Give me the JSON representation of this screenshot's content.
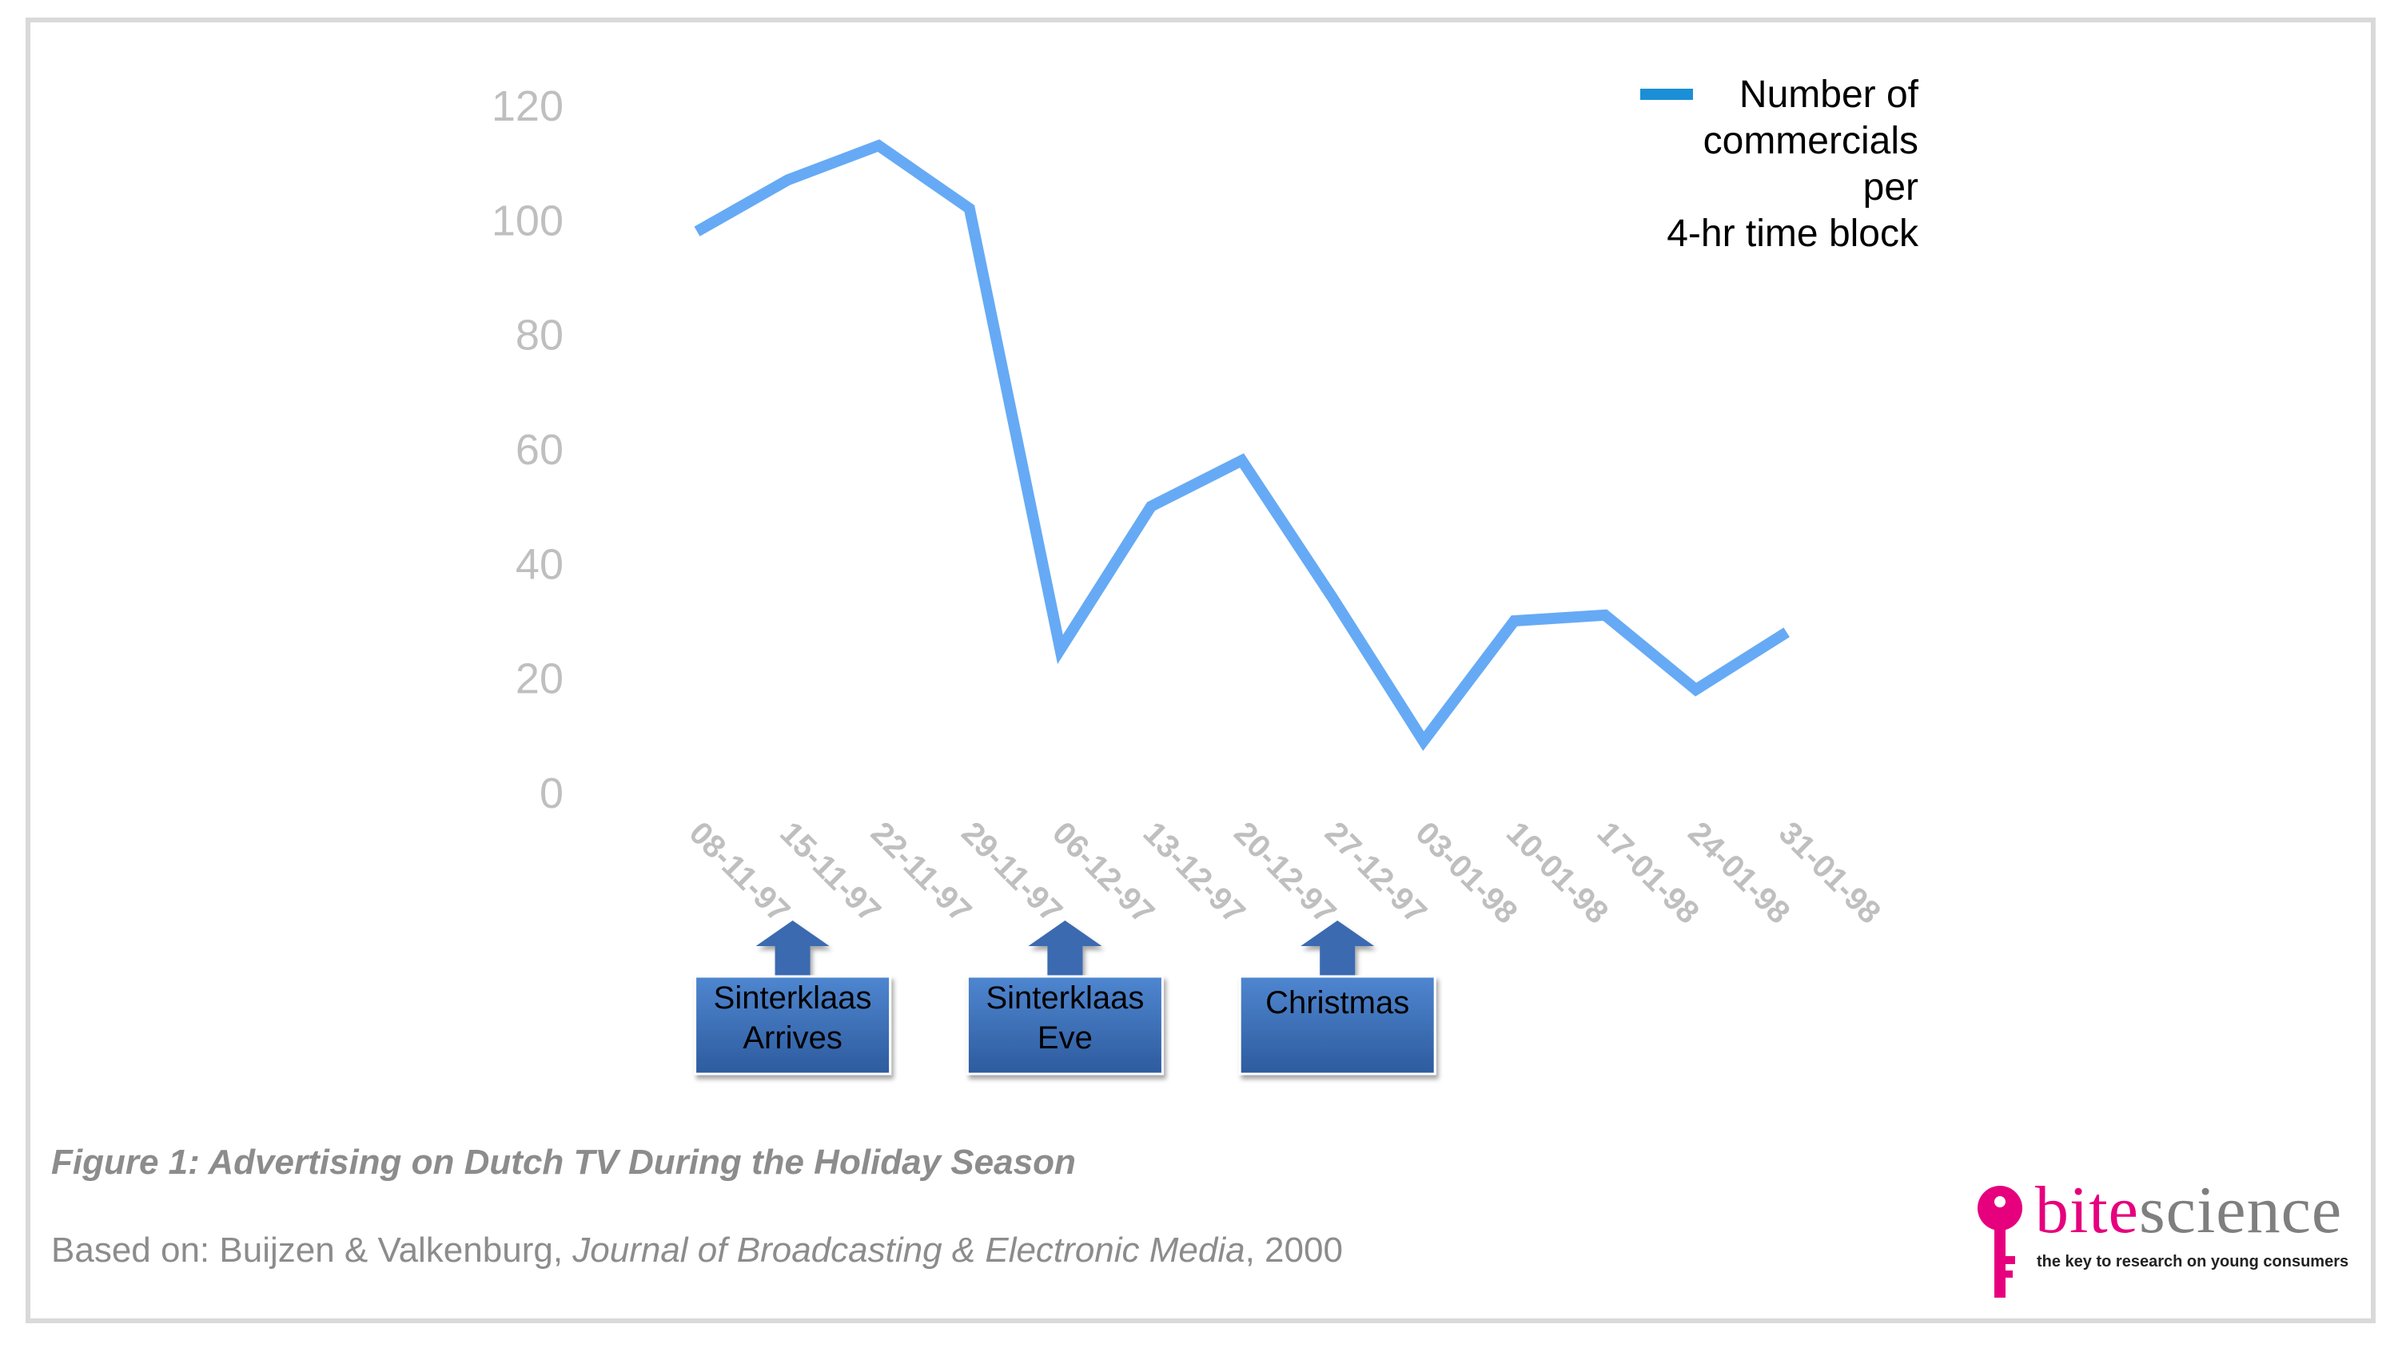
{
  "chart_data": {
    "type": "line",
    "title": "",
    "xlabel": "",
    "ylabel": "",
    "ylim": [
      0,
      120
    ],
    "yticks": [
      0,
      20,
      40,
      60,
      80,
      100,
      120
    ],
    "categories": [
      "08-11-97",
      "15-11-97",
      "22-11-97",
      "29-11-97",
      "06-12-97",
      "13-12-97",
      "20-12-97",
      "27-12-97",
      "03-01-98",
      "10-01-98",
      "17-01-98",
      "24-01-98",
      "31-01-98"
    ],
    "series": [
      {
        "name": "Number of commercials per 4-hr time block",
        "values": [
          98,
          107,
          113,
          102,
          25,
          50,
          58,
          34,
          9,
          30,
          31,
          18,
          28
        ]
      }
    ],
    "grid": false,
    "legend_position": "top-right",
    "legend_lines": [
      "Number of",
      "commercials",
      "per",
      "4-hr time block"
    ],
    "annotations": [
      {
        "category": "15-11-97",
        "lines": [
          "Sinterklaas",
          "Arrives"
        ]
      },
      {
        "category": "06-12-97",
        "lines": [
          "Sinterklaas",
          "Eve"
        ]
      },
      {
        "category": "27-12-97",
        "lines": [
          "Christmas"
        ]
      }
    ],
    "colors": {
      "line": "#66aaf5",
      "legend_swatch": "#1a8fd6",
      "annotation_fill": "#3a6ab0",
      "axis_text": "#bfbfbf"
    }
  },
  "caption": "Figure 1: Advertising on Dutch TV During the Holiday Season",
  "source": {
    "prefix": "Based on: Buijzen & Valkenburg, ",
    "journal": "Journal of Broadcasting & Electronic Media",
    "suffix": ", 2000"
  },
  "logo": {
    "word_part1": "bite",
    "word_part2": "science",
    "tagline": "the key to research on young consumers",
    "colors": {
      "accent": "#e6007e",
      "text": "#7f7f7f"
    }
  }
}
